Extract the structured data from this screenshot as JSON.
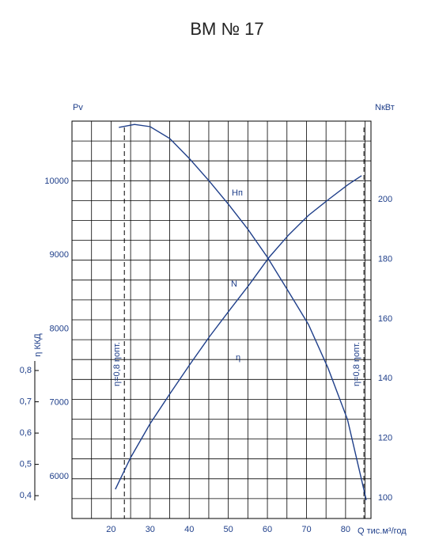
{
  "chart_data": {
    "type": "line",
    "title": "ВМ № 17",
    "y_label": "Pv",
    "y2_label": "NкВт",
    "y3_label": "η ККД",
    "x_label": "Q тис.м³/год",
    "xlim": [
      10,
      86.5
    ],
    "xticks": [
      20,
      30,
      40,
      50,
      60,
      70,
      80
    ],
    "xgrid": [
      10,
      15,
      20,
      25,
      30,
      35,
      40,
      45,
      50,
      55,
      60,
      65,
      70,
      75,
      80,
      85
    ],
    "ylim": [
      5430,
      10815
    ],
    "yticks": [
      6000,
      7000,
      8000,
      9000,
      10000
    ],
    "y2lim": [
      93.1,
      226.3
    ],
    "y2ticks": [
      100,
      120,
      140,
      160,
      180,
      200
    ],
    "y3lim": [
      0.327,
      1.597
    ],
    "y3ticks": [
      {
        "value": 0.4,
        "label": "0,4"
      },
      {
        "value": 0.5,
        "label": "0,5"
      },
      {
        "value": 0.6,
        "label": "0,6"
      },
      {
        "value": 0.7,
        "label": "0,7"
      },
      {
        "value": 0.8,
        "label": "0,8"
      }
    ],
    "grid": true,
    "series": [
      {
        "name": "Hп",
        "color": "#1f3f8a",
        "x": [
          22,
          26,
          30,
          35,
          40,
          45,
          50,
          55,
          60,
          65,
          70.5,
          75.5,
          80.5,
          85.3
        ],
        "values": [
          10730,
          10770,
          10740,
          10580,
          10310,
          10010,
          9690,
          9350,
          8970,
          8540,
          8060,
          7470,
          6770,
          5680
        ]
      },
      {
        "name": "N",
        "color": "#1f3f8a",
        "axis": "y2",
        "x": [
          21.1,
          25,
          30,
          35.1,
          40.2,
          45.2,
          50.3,
          55.3,
          60.4,
          65.4,
          70.5,
          75.6,
          80.6,
          84.1
        ],
        "values": [
          102.9,
          113.5,
          124.9,
          135,
          144.8,
          154.1,
          162.9,
          171.4,
          180.6,
          188.1,
          194.7,
          200,
          205,
          208
        ]
      }
    ],
    "eta_label": "η",
    "markers": [
      {
        "x": 23.4,
        "label": "η=0,8 ηопт."
      },
      {
        "x": 84.7,
        "label": "η=0,8 ηопт."
      }
    ]
  }
}
